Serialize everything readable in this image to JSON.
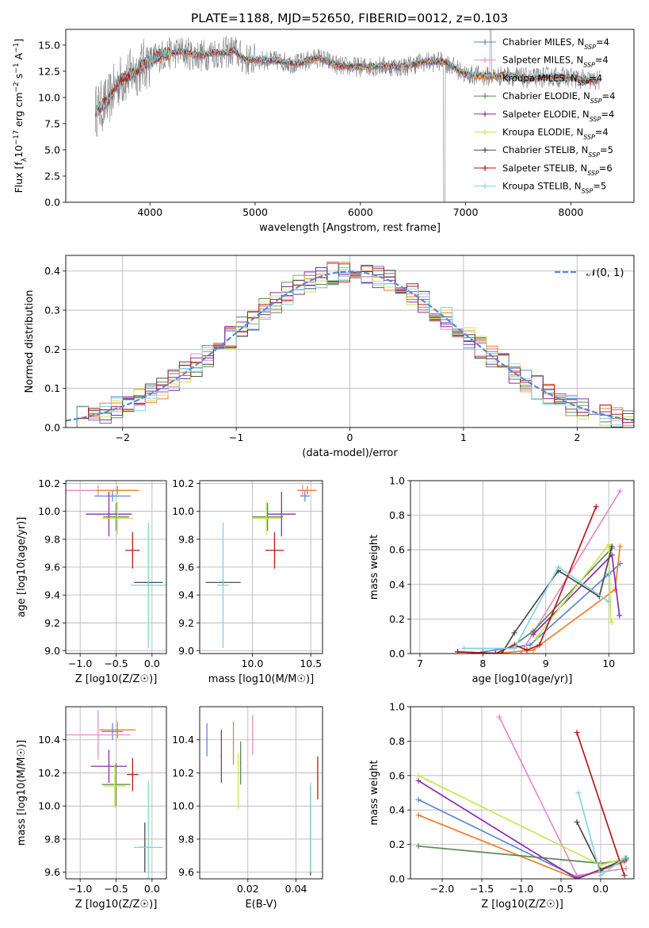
{
  "figure_title": "PLATE=1188, MJD=52650, FIBERID=0012, z=0.103",
  "colors": {
    "chabrier_miles": "#5b88d6",
    "salpeter_miles": "#e98bc4",
    "kroupa_miles": "#f07f2a",
    "chabrier_elodie": "#5c8a56",
    "salpeter_elodie": "#8e2ba8",
    "kroupa_elodie": "#c9e652",
    "chabrier_stelib": "#4a4a4a",
    "salpeter_stelib": "#b51a1a",
    "kroupa_stelib": "#83d4de",
    "data": "#808080",
    "gaussian": "#5b88d6"
  },
  "chart_data": [
    {
      "id": "spectrum",
      "type": "line",
      "xlabel": "wavelength [Angstrom, rest frame]",
      "ylabel": "Flux [f_λ10^-17 erg cm^-2 s^-1 A^-1]",
      "xlim": [
        3200,
        8600
      ],
      "ylim": [
        0,
        16.5
      ],
      "xticks": [
        "4000",
        "5000",
        "6000",
        "7000",
        "8000"
      ],
      "yticks": [
        "0.0",
        "2.5",
        "5.0",
        "7.5",
        "10.0",
        "12.5",
        "15.0"
      ],
      "legend": [
        "Chabrier MILES, N_SSP=4",
        "Salpeter MILES, N_SSP=4",
        "Kroupa MILES, N_SSP=4",
        "Chabrier ELODIE, N_SSP=4",
        "Salpeter ELODIE, N_SSP=4",
        "Kroupa ELODIE, N_SSP=4",
        "Chabrier STELIB, N_SSP=5",
        "Salpeter STELIB, N_SSP=6",
        "Kroupa STELIB, N_SSP=5"
      ],
      "legend_position": "top-right",
      "continuum": {
        "x": [
          3500,
          3600,
          3700,
          3800,
          3900,
          4000,
          4100,
          4200,
          4300,
          4400,
          4500,
          4600,
          4700,
          4800,
          4900,
          5000,
          5200,
          5400,
          5600,
          5800,
          6000,
          6200,
          6400,
          6600,
          6800,
          7000,
          7200,
          7400,
          7600,
          7800,
          8000,
          8200
        ],
        "y": [
          8.8,
          9.6,
          11.5,
          12.1,
          12.8,
          13.5,
          14.0,
          14.2,
          14.4,
          14.1,
          14.0,
          14.3,
          14.2,
          14.5,
          13.6,
          13.6,
          13.5,
          13.2,
          13.8,
          13.0,
          12.9,
          13.0,
          12.9,
          13.4,
          13.4,
          12.2,
          12.0,
          12.1,
          11.8,
          12.0,
          11.9,
          11.6
        ]
      }
    },
    {
      "id": "residuals",
      "type": "histogram",
      "xlabel": "(data-model)/error",
      "ylabel": "Normed distribution",
      "xlim": [
        -2.5,
        2.5
      ],
      "ylim": [
        0,
        0.44
      ],
      "xticks": [
        "−2",
        "−1",
        "0",
        "1",
        "2"
      ],
      "yticks": [
        "0.0",
        "0.1",
        "0.2",
        "0.3",
        "0.4"
      ],
      "bin_width": 0.1,
      "legend": [
        "𝒩(0, 1)"
      ],
      "legend_position": "top-right",
      "gaussian": {
        "mean": 0,
        "sigma": 1
      }
    },
    {
      "id": "age_vs_Z",
      "type": "scatter",
      "xlabel": "Z [log10(Z/Z☉)]",
      "ylabel": "age [log10(age/yr)]",
      "xlim": [
        -1.2,
        0.2
      ],
      "ylim": [
        8.98,
        10.22
      ],
      "xticks": [
        "−1.0",
        "−0.5",
        "0.0"
      ],
      "yticks": [
        "9.0",
        "9.2",
        "9.4",
        "9.6",
        "9.8",
        "10.0",
        "10.2"
      ],
      "points": [
        {
          "series": "Chabrier MILES",
          "x": -0.55,
          "xerr": 0.25,
          "y": 10.11,
          "yerr": 0.04
        },
        {
          "series": "Salpeter MILES",
          "x": -0.75,
          "xerr": 0.45,
          "y": 10.15,
          "yerr": 0.04
        },
        {
          "series": "Kroupa MILES",
          "x": -0.48,
          "xerr": 0.3,
          "y": 10.15,
          "yerr": 0.03
        },
        {
          "series": "Chabrier ELODIE",
          "x": -0.5,
          "xerr": 0.18,
          "y": 9.96,
          "yerr": 0.1
        },
        {
          "series": "Salpeter ELODIE",
          "x": -0.6,
          "xerr": 0.32,
          "y": 9.98,
          "yerr": 0.16
        },
        {
          "series": "Kroupa ELODIE",
          "x": -0.48,
          "xerr": 0.22,
          "y": 9.95,
          "yerr": 0.12
        },
        {
          "series": "Chabrier STELIB",
          "x": -0.05,
          "xerr": 0.2,
          "y": 9.49,
          "yerr": 0.02
        },
        {
          "series": "Salpeter STELIB",
          "x": -0.27,
          "xerr": 0.1,
          "y": 9.72,
          "yerr": 0.13
        },
        {
          "series": "Kroupa STELIB",
          "x": -0.05,
          "xerr": 0.25,
          "y": 9.47,
          "yerr": 0.45
        }
      ]
    },
    {
      "id": "age_vs_mass",
      "type": "scatter",
      "xlabel": "mass [log10(M/M☉)]",
      "ylabel": "",
      "xlim": [
        9.55,
        10.6
      ],
      "ylim": [
        8.98,
        10.22
      ],
      "xticks": [
        "10.0",
        "10.5"
      ],
      "yticks": [
        "9.0",
        "9.2",
        "9.4",
        "9.6",
        "9.8",
        "10.0",
        "10.2"
      ],
      "points": [
        {
          "series": "Chabrier MILES",
          "x": 10.45,
          "xerr": 0.04,
          "y": 10.11,
          "yerr": 0.04
        },
        {
          "series": "Salpeter MILES",
          "x": 10.43,
          "xerr": 0.05,
          "y": 10.15,
          "yerr": 0.04
        },
        {
          "series": "Kroupa MILES",
          "x": 10.47,
          "xerr": 0.08,
          "y": 10.15,
          "yerr": 0.03
        },
        {
          "series": "Chabrier ELODIE",
          "x": 10.13,
          "xerr": 0.13,
          "y": 9.96,
          "yerr": 0.1
        },
        {
          "series": "Salpeter ELODIE",
          "x": 10.25,
          "xerr": 0.12,
          "y": 9.98,
          "yerr": 0.16
        },
        {
          "series": "Kroupa ELODIE",
          "x": 10.12,
          "xerr": 0.12,
          "y": 9.95,
          "yerr": 0.12
        },
        {
          "series": "Chabrier STELIB",
          "x": 9.75,
          "xerr": 0.15,
          "y": 9.49,
          "yerr": 0.02
        },
        {
          "series": "Salpeter STELIB",
          "x": 10.19,
          "xerr": 0.08,
          "y": 9.72,
          "yerr": 0.13
        },
        {
          "series": "Kroupa STELIB",
          "x": 9.75,
          "xerr": 0.05,
          "y": 9.47,
          "yerr": 0.45
        }
      ]
    },
    {
      "id": "weight_vs_age",
      "type": "line",
      "xlabel": "age [log10(age/yr)]",
      "ylabel": "mass weight",
      "xlim": [
        6.85,
        10.4
      ],
      "ylim": [
        0,
        1.0
      ],
      "xticks": [
        "7",
        "8",
        "9",
        "10"
      ],
      "yticks": [
        "0.0",
        "0.2",
        "0.4",
        "0.6",
        "0.8",
        "1.0"
      ],
      "series": [
        {
          "key": "chabrier_miles",
          "x": [
            8.0,
            8.75,
            10.0,
            10.18
          ],
          "y": [
            0.01,
            0.05,
            0.46,
            0.52
          ]
        },
        {
          "key": "salpeter_miles",
          "x": [
            8.6,
            10.18
          ],
          "y": [
            0.0,
            0.94
          ]
        },
        {
          "key": "kroupa_miles",
          "x": [
            8.2,
            8.8,
            10.1,
            10.18
          ],
          "y": [
            0.0,
            0.02,
            0.37,
            0.62
          ]
        },
        {
          "key": "chabrier_elodie",
          "x": [
            8.5,
            8.8,
            10.05
          ],
          "y": [
            0.05,
            0.13,
            0.61
          ]
        },
        {
          "key": "salpeter_elodie",
          "x": [
            8.8,
            10.05,
            10.17
          ],
          "y": [
            0.11,
            0.57,
            0.22
          ]
        },
        {
          "key": "kroupa_elodie",
          "x": [
            8.85,
            10.0,
            10.03,
            10.05
          ],
          "y": [
            0.09,
            0.63,
            0.2,
            0.18
          ]
        },
        {
          "key": "chabrier_stelib",
          "x": [
            7.6,
            8.3,
            8.5,
            9.2,
            9.85,
            10.05
          ],
          "y": [
            0.01,
            0.0,
            0.12,
            0.48,
            0.33,
            0.62
          ]
        },
        {
          "key": "salpeter_stelib",
          "x": [
            7.6,
            8.2,
            8.5,
            8.7,
            8.9,
            9.8
          ],
          "y": [
            0.01,
            0.0,
            0.05,
            0.02,
            0.05,
            0.85
          ]
        },
        {
          "key": "kroupa_stelib",
          "x": [
            7.7,
            8.5,
            9.2,
            10.0
          ],
          "y": [
            0.03,
            0.03,
            0.5,
            0.3
          ]
        }
      ]
    },
    {
      "id": "mass_vs_Z",
      "type": "scatter",
      "xlabel": "Z [log10(Z/Z☉)]",
      "ylabel": "mass [log10(M/M☉)]",
      "xlim": [
        -1.2,
        0.2
      ],
      "ylim": [
        9.56,
        10.6
      ],
      "xticks": [
        "−1.0",
        "−0.5",
        "0.0"
      ],
      "yticks": [
        "9.6",
        "9.8",
        "10.0",
        "10.2",
        "10.4"
      ],
      "points": [
        {
          "series": "Chabrier MILES",
          "x": -0.55,
          "xerr": 0.15,
          "y": 10.45,
          "yerr": 0.05
        },
        {
          "series": "Salpeter MILES",
          "x": -0.75,
          "xerr": 0.45,
          "y": 10.43,
          "yerr": 0.15
        },
        {
          "series": "Kroupa MILES",
          "x": -0.48,
          "xerr": 0.25,
          "y": 10.46,
          "yerr": 0.05
        },
        {
          "series": "Chabrier ELODIE",
          "x": -0.5,
          "xerr": 0.2,
          "y": 10.13,
          "yerr": 0.13
        },
        {
          "series": "Salpeter ELODIE",
          "x": -0.6,
          "xerr": 0.25,
          "y": 10.24,
          "yerr": 0.1
        },
        {
          "series": "Kroupa ELODIE",
          "x": -0.52,
          "xerr": 0.15,
          "y": 10.12,
          "yerr": 0.13
        },
        {
          "series": "Chabrier STELIB",
          "x": -0.1,
          "xerr": 0.08,
          "y": 9.75,
          "yerr": 0.15
        },
        {
          "series": "Salpeter STELIB",
          "x": -0.27,
          "xerr": 0.08,
          "y": 10.19,
          "yerr": 0.1
        },
        {
          "series": "Kroupa STELIB",
          "x": -0.05,
          "xerr": 0.2,
          "y": 9.75,
          "yerr": 0.4
        }
      ]
    },
    {
      "id": "mass_vs_ebv",
      "type": "scatter",
      "xlabel": "E(B-V)",
      "ylabel": "",
      "xlim": [
        0.0,
        0.051
      ],
      "ylim": [
        9.56,
        10.6
      ],
      "xticks": [
        "0.02",
        "0.04"
      ],
      "yticks": [
        "9.6",
        "9.8",
        "10.0",
        "10.2",
        "10.4"
      ],
      "points": [
        {
          "series": "Chabrier MILES",
          "x": 0.003,
          "y": 10.4,
          "yerr": 0.1
        },
        {
          "series": "Salpeter MILES",
          "x": 0.022,
          "y": 10.43,
          "yerr": 0.12
        },
        {
          "series": "Kroupa MILES",
          "x": 0.014,
          "y": 10.38,
          "yerr": 0.13
        },
        {
          "series": "Chabrier ELODIE",
          "x": 0.017,
          "y": 10.26,
          "yerr": 0.13
        },
        {
          "series": "Salpeter ELODIE",
          "x": 0.009,
          "y": 10.3,
          "yerr": 0.16
        },
        {
          "series": "Kroupa ELODIE",
          "x": 0.016,
          "y": 10.15,
          "yerr": 0.17
        },
        {
          "series": "Chabrier STELIB",
          "x": 0.046,
          "y": 9.85,
          "yerr": 0.27
        },
        {
          "series": "Salpeter STELIB",
          "x": 0.049,
          "y": 10.17,
          "yerr": 0.13
        },
        {
          "series": "Kroupa STELIB",
          "x": 0.046,
          "y": 9.87,
          "yerr": 0.27
        }
      ]
    },
    {
      "id": "weight_vs_Z",
      "type": "line",
      "xlabel": "Z [log10(Z/Z☉)]",
      "ylabel": "mass weight",
      "xlim": [
        -2.4,
        0.42
      ],
      "ylim": [
        0,
        1.0
      ],
      "xticks": [
        "−2.0",
        "−1.5",
        "−1.0",
        "−0.5",
        "0.0"
      ],
      "yticks": [
        "0.0",
        "0.2",
        "0.4",
        "0.6",
        "0.8",
        "1.0"
      ],
      "series": [
        {
          "key": "chabrier_miles",
          "x": [
            -2.3,
            -0.3,
            0.0,
            0.3
          ],
          "y": [
            0.46,
            0.01,
            0.05,
            0.1
          ]
        },
        {
          "key": "salpeter_miles",
          "x": [
            -1.28,
            -0.3,
            0.32
          ],
          "y": [
            0.94,
            0.02,
            0.06
          ]
        },
        {
          "key": "kroupa_miles",
          "x": [
            -2.3,
            -0.3,
            0.3
          ],
          "y": [
            0.37,
            0.0,
            0.1
          ]
        },
        {
          "key": "chabrier_elodie",
          "x": [
            -2.3,
            0.0,
            0.32
          ],
          "y": [
            0.19,
            0.09,
            0.11
          ]
        },
        {
          "key": "salpeter_elodie",
          "x": [
            -2.3,
            -0.3,
            0.3
          ],
          "y": [
            0.57,
            0.0,
            0.11
          ]
        },
        {
          "key": "kroupa_elodie",
          "x": [
            -2.3,
            0.0,
            0.32
          ],
          "y": [
            0.6,
            0.08,
            0.12
          ]
        },
        {
          "key": "chabrier_stelib",
          "x": [
            -0.3,
            0.0,
            0.32
          ],
          "y": [
            0.33,
            0.05,
            0.12
          ]
        },
        {
          "key": "salpeter_stelib",
          "x": [
            -0.3,
            0.3
          ],
          "y": [
            0.85,
            0.02
          ]
        },
        {
          "key": "kroupa_stelib",
          "x": [
            -0.28,
            0.0,
            0.3
          ],
          "y": [
            0.5,
            0.02,
            0.12
          ]
        }
      ]
    }
  ]
}
